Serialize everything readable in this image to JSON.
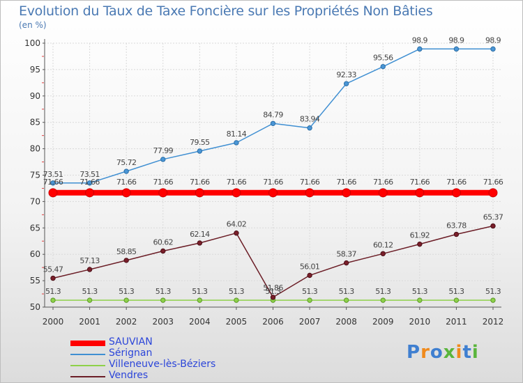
{
  "chart_data": {
    "type": "line",
    "title": "Evolution du Taux de Taxe Foncière sur les Propriétés Non Bâties",
    "ylabel": "(en %)",
    "xlabel": "",
    "categories": [
      "2000",
      "2001",
      "2002",
      "2003",
      "2004",
      "2005",
      "2006",
      "2007",
      "2008",
      "2009",
      "2010",
      "2011",
      "2012"
    ],
    "ylim": [
      50,
      100
    ],
    "yticks": [
      50,
      55,
      60,
      65,
      70,
      75,
      80,
      85,
      90,
      95,
      100
    ],
    "grid": true,
    "legend_position": "bottom-left",
    "series": [
      {
        "name": "SAUVIAN",
        "color": "#ff0000",
        "values": [
          71.66,
          71.66,
          71.66,
          71.66,
          71.66,
          71.66,
          71.66,
          71.66,
          71.66,
          71.66,
          71.66,
          71.66,
          71.66
        ],
        "labels": [
          "71.66",
          "71.66",
          "71.66",
          "71.66",
          "71.66",
          "71.66",
          "71.66",
          "71.66",
          "71.66",
          "71.66",
          "71.66",
          "71.66",
          "71.66"
        ]
      },
      {
        "name": "Sérignan",
        "color": "#3f8fd2",
        "values": [
          73.51,
          73.51,
          75.72,
          77.99,
          79.55,
          81.14,
          84.79,
          83.94,
          92.33,
          95.56,
          98.9,
          98.9,
          98.9
        ],
        "labels": [
          "73.51",
          "73.51",
          "75.72",
          "77.99",
          "79.55",
          "81.14",
          "84.79",
          "83.94",
          "92.33",
          "95.56",
          "98.9",
          "98.9",
          "98.9"
        ]
      },
      {
        "name": "Villeneuve-lès-Béziers",
        "color": "#8ed14a",
        "values": [
          51.3,
          51.3,
          51.3,
          51.3,
          51.3,
          51.3,
          51.3,
          51.3,
          51.3,
          51.3,
          51.3,
          51.3,
          51.3
        ],
        "labels": [
          "51.3",
          "51.3",
          "51.3",
          "51.3",
          "51.3",
          "51.3",
          "51.3",
          "51.3",
          "51.3",
          "51.3",
          "51.3",
          "51.3",
          "51.3"
        ]
      },
      {
        "name": "Vendres",
        "color": "#6b1d26",
        "values": [
          55.47,
          57.13,
          58.85,
          60.62,
          62.14,
          64.02,
          51.86,
          56.01,
          58.37,
          60.12,
          61.92,
          63.78,
          65.37
        ],
        "labels": [
          "55.47",
          "57.13",
          "58.85",
          "60.62",
          "62.14",
          "64.02",
          "51.86",
          "56.01",
          "58.37",
          "60.12",
          "61.92",
          "63.78",
          "65.37"
        ]
      }
    ]
  },
  "logo": {
    "letters": [
      "P",
      "r",
      "o",
      "x",
      "i",
      "t",
      "i"
    ],
    "colors": [
      "#3f7fd0",
      "#f08a1c",
      "#3f7fd0",
      "#5ab53c",
      "#f08a1c",
      "#3f7fd0",
      "#5ab53c"
    ]
  }
}
